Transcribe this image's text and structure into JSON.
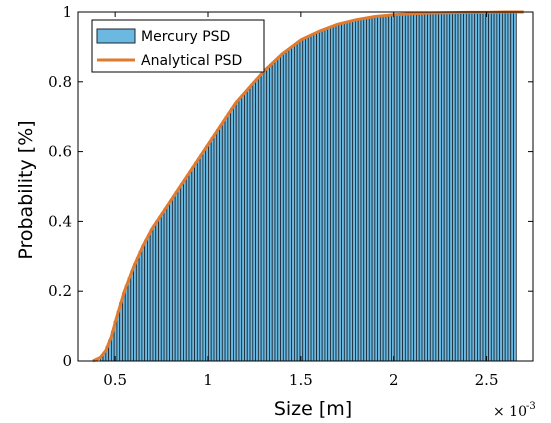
{
  "chart_data": {
    "type": "bar",
    "title": "",
    "xlabel": "Size [m]",
    "ylabel": "Probability [%]",
    "x_exponent_label": "× 10",
    "x_exponent_power": "-3",
    "xlim": [
      0.3,
      2.75
    ],
    "ylim": [
      0,
      1
    ],
    "x_ticks": [
      {
        "value": 0.5,
        "label": "0.5"
      },
      {
        "value": 1.0,
        "label": "1"
      },
      {
        "value": 1.5,
        "label": "1.5"
      },
      {
        "value": 2.0,
        "label": "2"
      },
      {
        "value": 2.5,
        "label": "2.5"
      }
    ],
    "y_ticks": [
      {
        "value": 0,
        "label": "0"
      },
      {
        "value": 0.2,
        "label": "0.2"
      },
      {
        "value": 0.4,
        "label": "0.4"
      },
      {
        "value": 0.6,
        "label": "0.6"
      },
      {
        "value": 0.8,
        "label": "0.8"
      },
      {
        "value": 1.0,
        "label": "1"
      }
    ],
    "bar_range": [
      0.42,
      2.66
    ],
    "bar_count": 150,
    "grid": false,
    "legend_position": "top-left",
    "series": [
      {
        "name": "Mercury PSD",
        "kind": "bar",
        "color": "#6bb8e0",
        "edge_color": "#1a2530"
      },
      {
        "name": "Analytical PSD",
        "kind": "line",
        "color": "#e07a2e",
        "x": [
          0.38,
          0.42,
          0.45,
          0.48,
          0.5,
          0.55,
          0.6,
          0.65,
          0.7,
          0.75,
          0.8,
          0.85,
          0.9,
          0.95,
          1.0,
          1.05,
          1.1,
          1.15,
          1.2,
          1.25,
          1.3,
          1.35,
          1.4,
          1.45,
          1.5,
          1.6,
          1.7,
          1.8,
          1.9,
          2.0,
          2.1,
          2.2,
          2.3,
          2.4,
          2.5,
          2.6,
          2.7
        ],
        "y": [
          0.0,
          0.01,
          0.03,
          0.07,
          0.11,
          0.2,
          0.27,
          0.33,
          0.38,
          0.42,
          0.46,
          0.5,
          0.54,
          0.58,
          0.62,
          0.66,
          0.7,
          0.74,
          0.77,
          0.8,
          0.83,
          0.855,
          0.88,
          0.9,
          0.92,
          0.945,
          0.965,
          0.978,
          0.987,
          0.992,
          0.995,
          0.997,
          0.998,
          0.999,
          0.999,
          1.0,
          1.0
        ]
      }
    ]
  }
}
